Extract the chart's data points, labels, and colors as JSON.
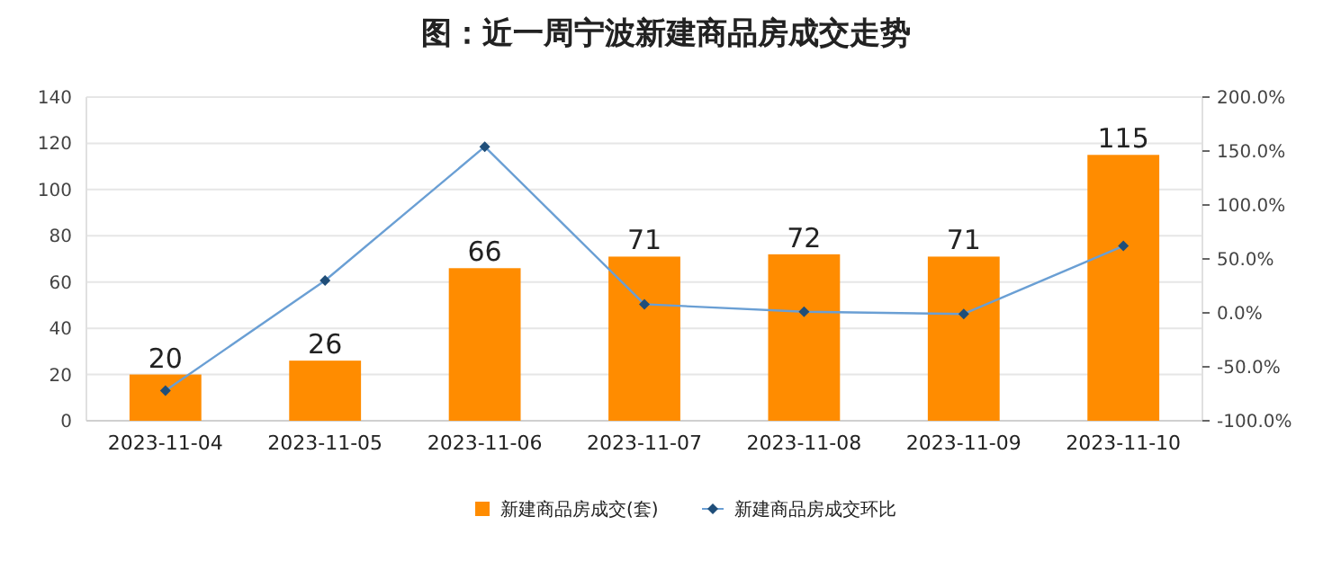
{
  "chart_data": {
    "type": "bar",
    "title": "图：近一周宁波新建商品房成交走势",
    "categories": [
      "2023-11-04",
      "2023-11-05",
      "2023-11-06",
      "2023-11-07",
      "2023-11-08",
      "2023-11-09",
      "2023-11-10"
    ],
    "series": [
      {
        "name": "新建商品房成交(套)",
        "color": "#ff8c00",
        "values": [
          20,
          26,
          66,
          71,
          72,
          71,
          115
        ],
        "value_labels": [
          "20",
          "26",
          "66",
          "71",
          "72",
          "71",
          "115"
        ]
      },
      {
        "name": "新建商品房成交环比",
        "type": "line",
        "axis": "y2",
        "color": "#6a9fd4",
        "values": [
          -72,
          30,
          154,
          8,
          1,
          -1,
          62
        ]
      }
    ],
    "ylim": [
      0,
      140
    ],
    "yticks": [
      0,
      20,
      40,
      60,
      80,
      100,
      120,
      140
    ],
    "y2lim": [
      -100,
      200
    ],
    "y2ticks": [
      {
        "value": -100,
        "label": "-100.0%"
      },
      {
        "value": -50,
        "label": "-50.0%"
      },
      {
        "value": 0,
        "label": "0.0%"
      },
      {
        "value": 50,
        "label": "50.0%"
      },
      {
        "value": 100,
        "label": "100.0%"
      },
      {
        "value": 150,
        "label": "150.0%"
      },
      {
        "value": 200,
        "label": "200.0%"
      }
    ],
    "grid": "y",
    "legend": "bottom",
    "marker": "diamond",
    "line_style": "solid"
  }
}
